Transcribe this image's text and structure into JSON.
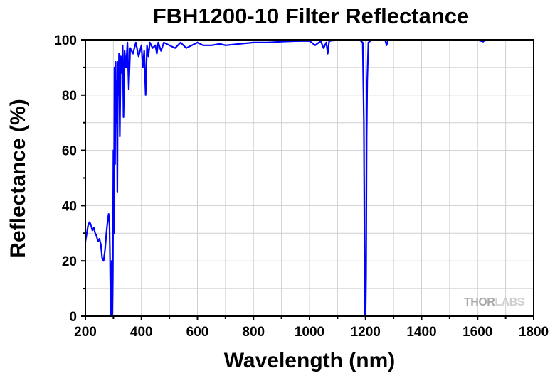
{
  "chart_data": {
    "type": "line",
    "title": "FBH1200-10 Filter Reflectance",
    "xlabel": "Wavelength (nm)",
    "ylabel": "Reflectance (%)",
    "xlim": [
      200,
      1800
    ],
    "ylim": [
      0,
      100
    ],
    "xticks": [
      200,
      400,
      600,
      800,
      1000,
      1200,
      1400,
      1600,
      1800
    ],
    "yticks": [
      0,
      20,
      40,
      60,
      80,
      100
    ],
    "grid": true,
    "legend": "none",
    "series": [
      {
        "color": "#0000ff",
        "x": [
          200,
          205,
          210,
          215,
          220,
          225,
          230,
          235,
          240,
          245,
          250,
          255,
          260,
          265,
          270,
          275,
          280,
          283,
          286,
          288,
          290,
          292,
          294,
          296,
          298,
          300,
          302,
          304,
          306,
          308,
          310,
          312,
          314,
          316,
          318,
          320,
          323,
          326,
          330,
          333,
          336,
          340,
          345,
          350,
          355,
          360,
          370,
          380,
          390,
          400,
          405,
          410,
          415,
          420,
          425,
          430,
          440,
          450,
          455,
          460,
          470,
          480,
          500,
          520,
          540,
          560,
          580,
          600,
          620,
          650,
          680,
          700,
          750,
          800,
          850,
          900,
          950,
          1000,
          1020,
          1040,
          1050,
          1060,
          1065,
          1070,
          1080,
          1100,
          1150,
          1180,
          1190,
          1194,
          1196,
          1198,
          1200,
          1202,
          1204,
          1206,
          1210,
          1220,
          1250,
          1270,
          1275,
          1280,
          1300,
          1400,
          1500,
          1600,
          1620,
          1625,
          1630,
          1700,
          1800
        ],
        "y": [
          27,
          30,
          33,
          34,
          33,
          31,
          32,
          30,
          29,
          27,
          28,
          26,
          21,
          20,
          24,
          30,
          35,
          37,
          33,
          20,
          3,
          0,
          20,
          0,
          15,
          60,
          30,
          90,
          55,
          92,
          70,
          85,
          45,
          92,
          80,
          95,
          65,
          94,
          88,
          98,
          72,
          96,
          90,
          99,
          82,
          97,
          95,
          99,
          94,
          98,
          90,
          96,
          80,
          98,
          94,
          99,
          97,
          98,
          95,
          99,
          96,
          99,
          98,
          97,
          99,
          97,
          98,
          99,
          98,
          98,
          98.5,
          98,
          98.5,
          99,
          99,
          99.3,
          99.5,
          99.6,
          98,
          99.5,
          97,
          99,
          95,
          99.5,
          99.7,
          99.8,
          99.8,
          99.8,
          99,
          70,
          28,
          0,
          0,
          15,
          65,
          85,
          99,
          99.8,
          99.9,
          99.9,
          98,
          99.9,
          99.9,
          99.9,
          99.9,
          99.9,
          99.3,
          99.8,
          99.9,
          99.9,
          99.9
        ]
      }
    ]
  },
  "watermark": {
    "part1": "THOR",
    "part2": "LABS"
  }
}
